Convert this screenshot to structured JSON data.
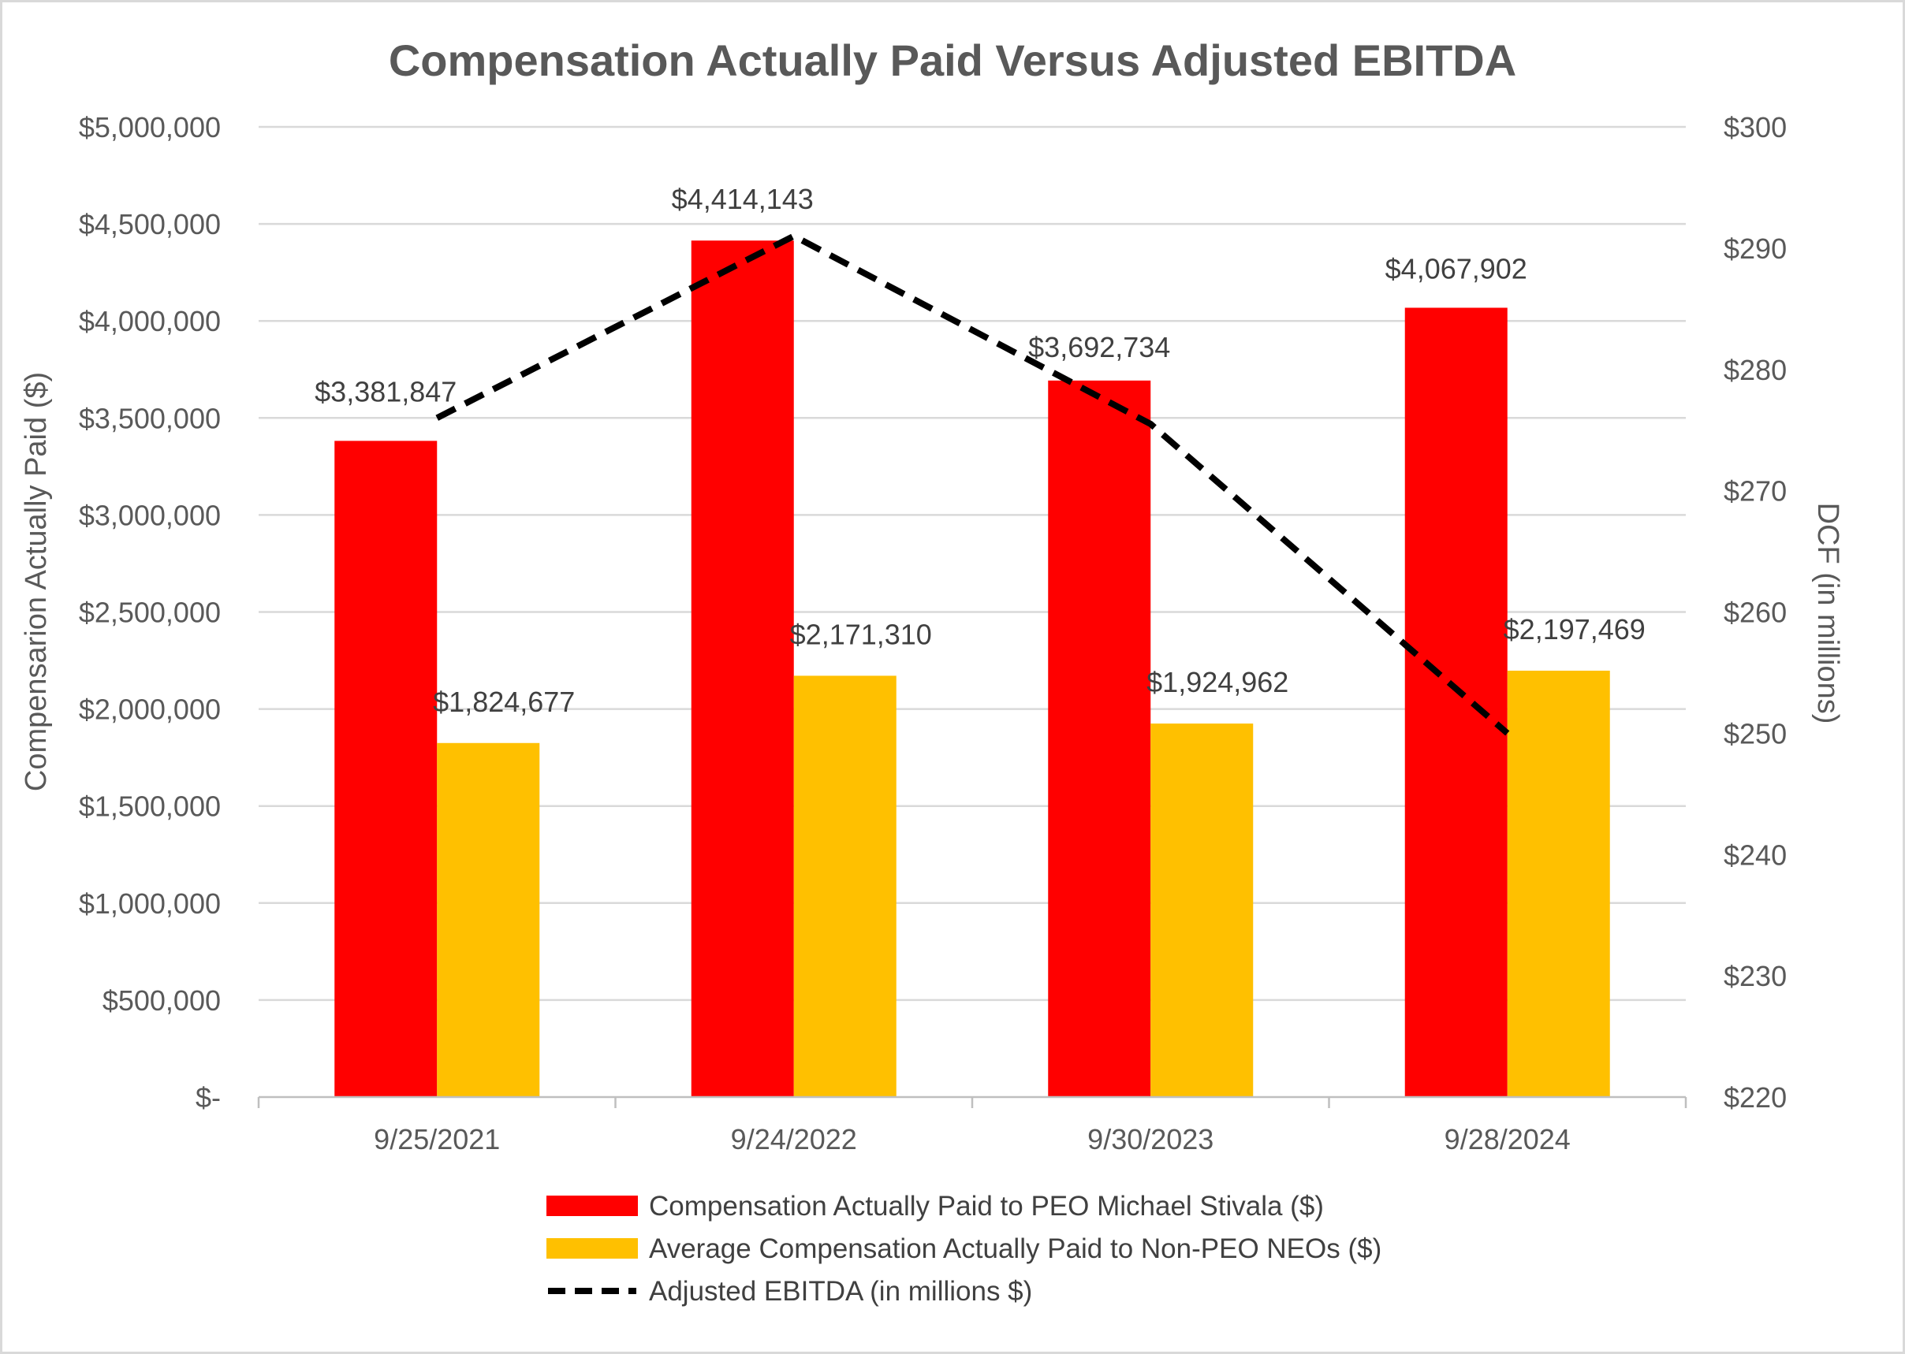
{
  "chart_data": {
    "type": "bar",
    "title": "Compensation Actually Paid Versus Adjusted EBITDA",
    "categories": [
      "9/25/2021",
      "9/24/2022",
      "9/30/2023",
      "9/28/2024"
    ],
    "series": [
      {
        "name": "Compensation Actually Paid to PEO Michael Stivala ($)",
        "kind": "bar",
        "axis": "left",
        "color": "#ff0000",
        "values": [
          3381847,
          4414143,
          3692734,
          4067902
        ],
        "labels": [
          "$3,381,847",
          "$4,414,143",
          "$3,692,734",
          "$4,067,902"
        ]
      },
      {
        "name": "Average Compensation Actually Paid to Non-PEO NEOs ($)",
        "kind": "bar",
        "axis": "left",
        "color": "#ffc000",
        "values": [
          1824677,
          2171310,
          1924962,
          2197469
        ],
        "labels": [
          "$1,824,677",
          "$2,171,310",
          "$1,924,962",
          "$2,197,469"
        ]
      },
      {
        "name": "Adjusted EBITDA (in millions $)",
        "kind": "line",
        "style": "dashed",
        "axis": "right",
        "color": "#000000",
        "values": [
          276,
          291,
          275.5,
          250
        ]
      }
    ],
    "ylabel": "Compensarion Actually Paid ($)",
    "ylim": [
      0,
      5000000
    ],
    "yticks": [
      0,
      500000,
      1000000,
      1500000,
      2000000,
      2500000,
      3000000,
      3500000,
      4000000,
      4500000,
      5000000
    ],
    "ytick_labels": [
      "$-",
      "$500,000",
      "$1,000,000",
      "$1,500,000",
      "$2,000,000",
      "$2,500,000",
      "$3,000,000",
      "$3,500,000",
      "$4,000,000",
      "$4,500,000",
      "$5,000,000"
    ],
    "y2label": "DCF (in millions)",
    "y2lim": [
      220,
      300
    ],
    "y2ticks": [
      220,
      230,
      240,
      250,
      260,
      270,
      280,
      290,
      300
    ],
    "y2tick_labels": [
      "$220",
      "$230",
      "$240",
      "$250",
      "$260",
      "$270",
      "$280",
      "$290",
      "$300"
    ],
    "grid": true,
    "legend_position": "bottom"
  }
}
